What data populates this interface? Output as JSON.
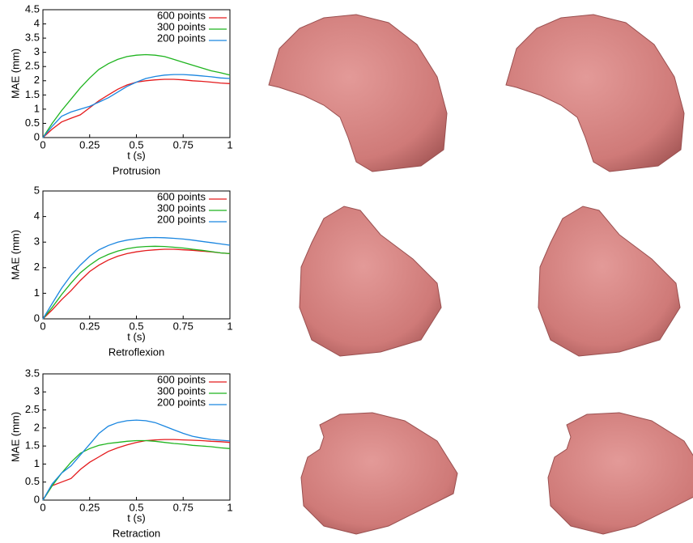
{
  "chart_data": [
    {
      "type": "line",
      "title": "Protrusion",
      "xlabel": "t (s)",
      "ylabel": "MAE (mm)",
      "legend": "upper right",
      "x": [
        0,
        0.05,
        0.1,
        0.15,
        0.2,
        0.25,
        0.3,
        0.35,
        0.4,
        0.45,
        0.5,
        0.55,
        0.6,
        0.65,
        0.7,
        0.75,
        0.8,
        0.85,
        0.9,
        0.95,
        1
      ],
      "xlim": [
        0,
        1
      ],
      "xticks": [
        0,
        0.25,
        0.5,
        0.75,
        1
      ],
      "ylim": [
        0,
        4.5
      ],
      "yticks": [
        0,
        0.5,
        1,
        1.5,
        2,
        2.5,
        3,
        3.5,
        4,
        4.5
      ],
      "series": [
        {
          "name": "600 points",
          "color": "#e41a1c",
          "values": [
            0,
            0.3,
            0.55,
            0.68,
            0.8,
            1.05,
            1.3,
            1.5,
            1.7,
            1.85,
            1.95,
            2.0,
            2.03,
            2.05,
            2.05,
            2.03,
            2.0,
            1.98,
            1.95,
            1.92,
            1.9
          ]
        },
        {
          "name": "300 points",
          "color": "#1fb41f",
          "values": [
            0,
            0.5,
            0.95,
            1.35,
            1.75,
            2.1,
            2.4,
            2.6,
            2.75,
            2.85,
            2.9,
            2.92,
            2.9,
            2.85,
            2.75,
            2.65,
            2.55,
            2.45,
            2.35,
            2.28,
            2.2
          ]
        },
        {
          "name": "200 points",
          "color": "#1a86e0",
          "values": [
            0,
            0.4,
            0.75,
            0.9,
            1.0,
            1.1,
            1.25,
            1.4,
            1.6,
            1.8,
            1.95,
            2.08,
            2.15,
            2.2,
            2.22,
            2.22,
            2.2,
            2.17,
            2.14,
            2.1,
            2.08
          ]
        }
      ]
    },
    {
      "type": "line",
      "title": "Retroflexion",
      "xlabel": "t (s)",
      "ylabel": "MAE (mm)",
      "legend": "upper right",
      "x": [
        0,
        0.05,
        0.1,
        0.15,
        0.2,
        0.25,
        0.3,
        0.35,
        0.4,
        0.45,
        0.5,
        0.55,
        0.6,
        0.65,
        0.7,
        0.75,
        0.8,
        0.85,
        0.9,
        0.95,
        1
      ],
      "xlim": [
        0,
        1
      ],
      "xticks": [
        0,
        0.25,
        0.5,
        0.75,
        1
      ],
      "ylim": [
        0,
        5
      ],
      "yticks": [
        0,
        1,
        2,
        3,
        4,
        5
      ],
      "series": [
        {
          "name": "600 points",
          "color": "#e41a1c",
          "values": [
            0,
            0.35,
            0.75,
            1.1,
            1.5,
            1.85,
            2.1,
            2.3,
            2.45,
            2.55,
            2.62,
            2.67,
            2.7,
            2.72,
            2.72,
            2.7,
            2.68,
            2.65,
            2.62,
            2.58,
            2.55
          ]
        },
        {
          "name": "300 points",
          "color": "#1fb41f",
          "values": [
            0,
            0.45,
            0.95,
            1.4,
            1.8,
            2.1,
            2.35,
            2.52,
            2.65,
            2.74,
            2.8,
            2.83,
            2.84,
            2.83,
            2.8,
            2.77,
            2.72,
            2.68,
            2.63,
            2.58,
            2.55
          ]
        },
        {
          "name": "200 points",
          "color": "#1a86e0",
          "values": [
            0,
            0.6,
            1.2,
            1.7,
            2.1,
            2.45,
            2.7,
            2.87,
            3.0,
            3.08,
            3.13,
            3.17,
            3.18,
            3.17,
            3.15,
            3.12,
            3.08,
            3.03,
            2.98,
            2.93,
            2.88
          ]
        }
      ]
    },
    {
      "type": "line",
      "title": "Retraction",
      "xlabel": "t (s)",
      "ylabel": "MAE (mm)",
      "legend": "upper right",
      "x": [
        0,
        0.05,
        0.1,
        0.15,
        0.2,
        0.25,
        0.3,
        0.35,
        0.4,
        0.45,
        0.5,
        0.55,
        0.6,
        0.65,
        0.7,
        0.75,
        0.8,
        0.85,
        0.9,
        0.95,
        1
      ],
      "xlim": [
        0,
        1
      ],
      "xticks": [
        0,
        0.25,
        0.5,
        0.75,
        1
      ],
      "ylim": [
        0,
        3.5
      ],
      "yticks": [
        0,
        0.5,
        1,
        1.5,
        2,
        2.5,
        3,
        3.5
      ],
      "series": [
        {
          "name": "600 points",
          "color": "#e41a1c",
          "values": [
            0,
            0.4,
            0.5,
            0.6,
            0.85,
            1.05,
            1.2,
            1.35,
            1.45,
            1.53,
            1.6,
            1.65,
            1.67,
            1.68,
            1.68,
            1.67,
            1.66,
            1.65,
            1.63,
            1.62,
            1.6
          ]
        },
        {
          "name": "300 points",
          "color": "#1fb41f",
          "values": [
            0,
            0.4,
            0.75,
            1.05,
            1.3,
            1.43,
            1.52,
            1.57,
            1.6,
            1.63,
            1.65,
            1.65,
            1.63,
            1.6,
            1.57,
            1.55,
            1.52,
            1.5,
            1.48,
            1.45,
            1.43
          ]
        },
        {
          "name": "200 points",
          "color": "#1a86e0",
          "values": [
            0,
            0.45,
            0.75,
            0.95,
            1.25,
            1.55,
            1.85,
            2.05,
            2.15,
            2.2,
            2.22,
            2.2,
            2.15,
            2.05,
            1.95,
            1.85,
            1.77,
            1.72,
            1.68,
            1.66,
            1.64
          ]
        }
      ]
    }
  ]
}
